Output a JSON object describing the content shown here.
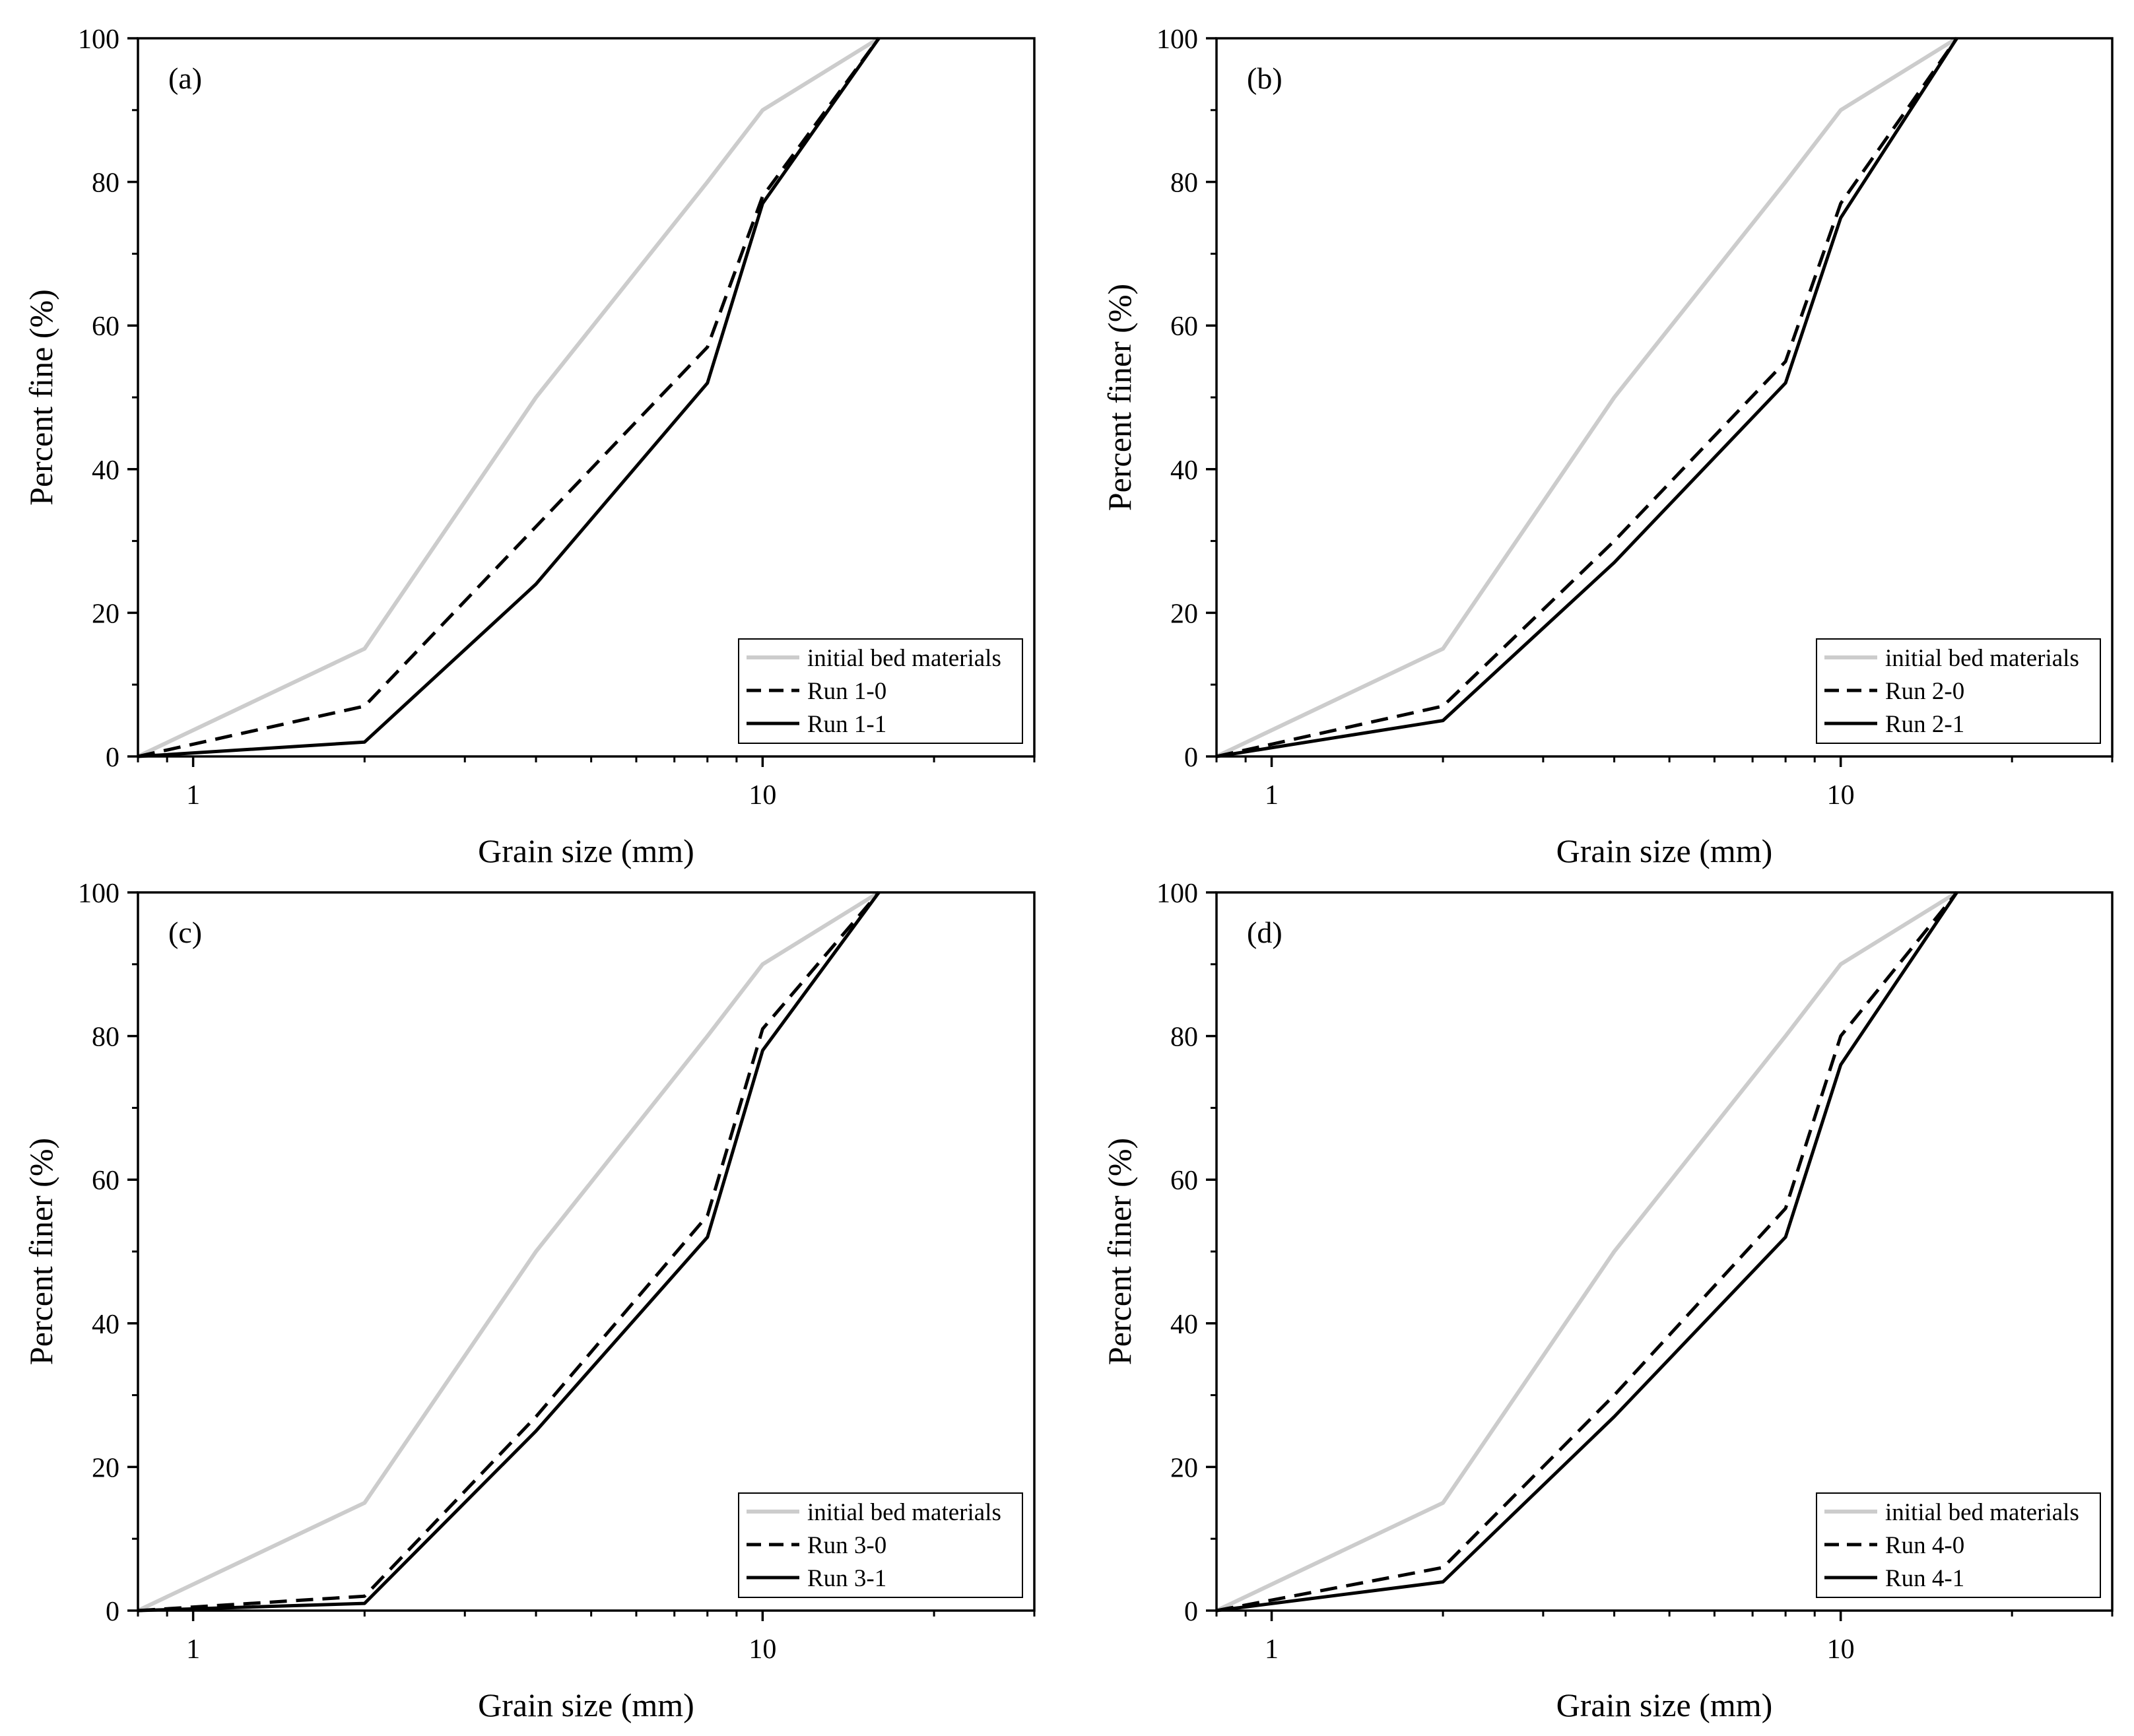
{
  "chart_data": [
    {
      "type": "line",
      "panel_label": "(a)",
      "xlabel": "Grain size (mm)",
      "ylabel": "Percent fine (%)",
      "xscale": "log",
      "xlim": [
        0.8,
        30
      ],
      "ylim": [
        0,
        100
      ],
      "xticks": [
        1,
        10
      ],
      "xtick_labels": [
        "1",
        "10"
      ],
      "yticks": [
        0,
        20,
        40,
        60,
        80,
        100
      ],
      "ytick_labels": [
        "0",
        "20",
        "40",
        "60",
        "80",
        "100"
      ],
      "legend_position": "bottom-right",
      "series": [
        {
          "name": "initial bed materials",
          "style": "solid",
          "color": "#cccccc",
          "x": [
            0.8,
            2,
            4,
            8,
            10,
            16
          ],
          "values": [
            0,
            15,
            50,
            80,
            90,
            100
          ]
        },
        {
          "name": "Run 1-0",
          "style": "dashed",
          "color": "#000000",
          "x": [
            0.8,
            2,
            4,
            8,
            10,
            16
          ],
          "values": [
            0,
            7,
            32,
            57,
            78,
            100
          ]
        },
        {
          "name": "Run 1-1",
          "style": "solid",
          "color": "#000000",
          "x": [
            0.8,
            2,
            4,
            8,
            10,
            16
          ],
          "values": [
            0,
            2,
            24,
            52,
            77,
            100
          ]
        }
      ]
    },
    {
      "type": "line",
      "panel_label": "(b)",
      "xlabel": "Grain size (mm)",
      "ylabel": "Percent finer (%)",
      "xscale": "log",
      "xlim": [
        0.8,
        30
      ],
      "ylim": [
        0,
        100
      ],
      "xticks": [
        1,
        10
      ],
      "xtick_labels": [
        "1",
        "10"
      ],
      "yticks": [
        0,
        20,
        40,
        60,
        80,
        100
      ],
      "ytick_labels": [
        "0",
        "20",
        "40",
        "60",
        "80",
        "100"
      ],
      "legend_position": "bottom-right",
      "series": [
        {
          "name": "initial bed materials",
          "style": "solid",
          "color": "#cccccc",
          "x": [
            0.8,
            2,
            4,
            8,
            10,
            16
          ],
          "values": [
            0,
            15,
            50,
            80,
            90,
            100
          ]
        },
        {
          "name": "Run 2-0",
          "style": "dashed",
          "color": "#000000",
          "x": [
            0.8,
            2,
            4,
            8,
            10,
            16
          ],
          "values": [
            0,
            7,
            30,
            55,
            77,
            100
          ]
        },
        {
          "name": "Run 2-1",
          "style": "solid",
          "color": "#000000",
          "x": [
            0.8,
            2,
            4,
            8,
            10,
            16
          ],
          "values": [
            0,
            5,
            27,
            52,
            75,
            100
          ]
        }
      ]
    },
    {
      "type": "line",
      "panel_label": "(c)",
      "xlabel": "Grain size (mm)",
      "ylabel": "Percent finer (%)",
      "xscale": "log",
      "xlim": [
        0.8,
        30
      ],
      "ylim": [
        0,
        100
      ],
      "xticks": [
        1,
        10
      ],
      "xtick_labels": [
        "1",
        "10"
      ],
      "yticks": [
        0,
        20,
        40,
        60,
        80,
        100
      ],
      "ytick_labels": [
        "0",
        "20",
        "40",
        "60",
        "80",
        "100"
      ],
      "legend_position": "bottom-right",
      "series": [
        {
          "name": "initial bed materials",
          "style": "solid",
          "color": "#cccccc",
          "x": [
            0.8,
            2,
            4,
            8,
            10,
            16
          ],
          "values": [
            0,
            15,
            50,
            80,
            90,
            100
          ]
        },
        {
          "name": "Run 3-0",
          "style": "dashed",
          "color": "#000000",
          "x": [
            0.8,
            2,
            4,
            8,
            10,
            16
          ],
          "values": [
            0,
            2,
            27,
            55,
            81,
            100
          ]
        },
        {
          "name": "Run 3-1",
          "style": "solid",
          "color": "#000000",
          "x": [
            0.8,
            2,
            4,
            8,
            10,
            16
          ],
          "values": [
            0,
            1,
            25,
            52,
            78,
            100
          ]
        }
      ]
    },
    {
      "type": "line",
      "panel_label": "(d)",
      "xlabel": "Grain size (mm)",
      "ylabel": "Percent finer (%)",
      "xscale": "log",
      "xlim": [
        0.8,
        30
      ],
      "ylim": [
        0,
        100
      ],
      "xticks": [
        1,
        10
      ],
      "xtick_labels": [
        "1",
        "10"
      ],
      "yticks": [
        0,
        20,
        40,
        60,
        80,
        100
      ],
      "ytick_labels": [
        "0",
        "20",
        "40",
        "60",
        "80",
        "100"
      ],
      "legend_position": "bottom-right",
      "series": [
        {
          "name": "initial bed materials",
          "style": "solid",
          "color": "#cccccc",
          "x": [
            0.8,
            2,
            4,
            8,
            10,
            16
          ],
          "values": [
            0,
            15,
            50,
            80,
            90,
            100
          ]
        },
        {
          "name": "Run 4-0",
          "style": "dashed",
          "color": "#000000",
          "x": [
            0.8,
            2,
            4,
            8,
            10,
            16
          ],
          "values": [
            0,
            6,
            30,
            56,
            80,
            100
          ]
        },
        {
          "name": "Run 4-1",
          "style": "solid",
          "color": "#000000",
          "x": [
            0.8,
            2,
            4,
            8,
            10,
            16
          ],
          "values": [
            0,
            4,
            27,
            52,
            76,
            100
          ]
        }
      ]
    }
  ]
}
